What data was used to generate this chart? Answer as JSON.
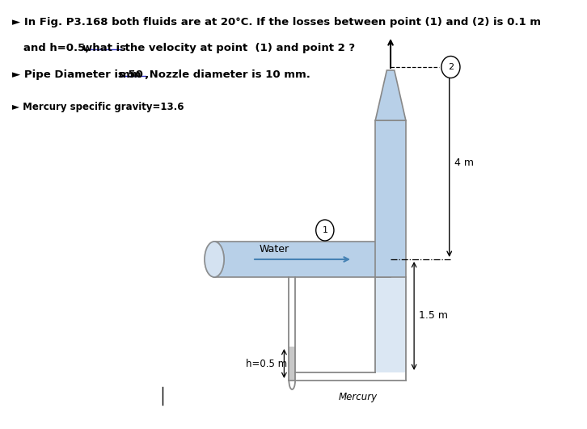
{
  "bg_color": "#ffffff",
  "pipe_fill": "#b8d0e8",
  "pipe_edge": "#888888",
  "mercury_fill": "#c8c8c8",
  "label_4m": "4 m",
  "label_15m": "1.5 m",
  "label_h": "h=0.5 m",
  "label_water": "Water",
  "label_mercury": "Mercury",
  "label_1": "1",
  "label_2": "2"
}
